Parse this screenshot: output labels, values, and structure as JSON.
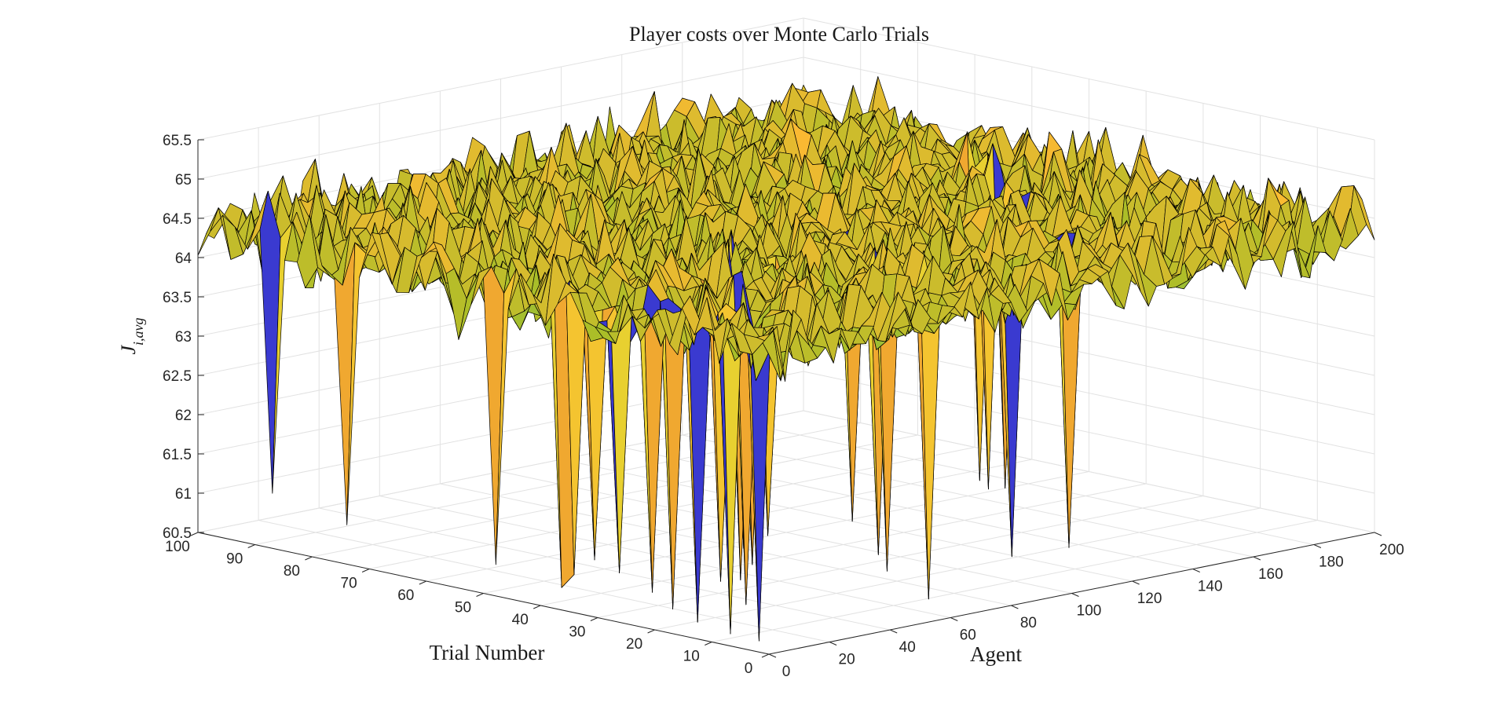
{
  "chart_data": {
    "type": "surface",
    "title": "Player costs over Monte Carlo Trials",
    "xlabel": "Agent",
    "ylabel": "Trial Number",
    "zlabel": "J_{i,avg}",
    "xlim": [
      0,
      200
    ],
    "ylim": [
      0,
      100
    ],
    "zlim": [
      60.5,
      65.5
    ],
    "x_ticks": [
      "0",
      "20",
      "40",
      "60",
      "80",
      "100",
      "120",
      "140",
      "160",
      "180",
      "200"
    ],
    "y_ticks": [
      "0",
      "10",
      "20",
      "30",
      "40",
      "50",
      "60",
      "70",
      "80",
      "90",
      "100"
    ],
    "z_ticks": [
      "60.5",
      "61",
      "61.5",
      "62",
      "62.5",
      "63",
      "63.5",
      "64",
      "64.5",
      "65",
      "65.5"
    ],
    "grid": true,
    "colormap": "parula",
    "edge_color": "#000000",
    "surface_typical_range": [
      63.6,
      65.1
    ],
    "spikes": [
      {
        "agent": 1,
        "trial": 88,
        "value": 61.2
      },
      {
        "agent": 1,
        "trial": 73,
        "value": 61.0
      },
      {
        "agent": 1,
        "trial": 47,
        "value": 60.9
      },
      {
        "agent": 4,
        "trial": 40,
        "value": 60.7
      },
      {
        "agent": 6,
        "trial": 38,
        "value": 60.9
      },
      {
        "agent": 7,
        "trial": 34,
        "value": 61.1
      },
      {
        "agent": 9,
        "trial": 30,
        "value": 61.0
      },
      {
        "agent": 10,
        "trial": 27,
        "value": 60.8
      },
      {
        "agent": 12,
        "trial": 23,
        "value": 60.6
      },
      {
        "agent": 14,
        "trial": 19,
        "value": 60.5
      },
      {
        "agent": 17,
        "trial": 16,
        "value": 60.4
      },
      {
        "agent": 20,
        "trial": 12,
        "value": 60.3
      },
      {
        "agent": 30,
        "trial": 20,
        "value": 60.6
      },
      {
        "agent": 36,
        "trial": 28,
        "value": 60.7
      },
      {
        "agent": 48,
        "trial": 30,
        "value": 60.6
      },
      {
        "agent": 56,
        "trial": 32,
        "value": 60.7
      },
      {
        "agent": 62,
        "trial": 36,
        "value": 60.8
      },
      {
        "agent": 70,
        "trial": 38,
        "value": 60.9
      },
      {
        "agent": 76,
        "trial": 14,
        "value": 60.4
      },
      {
        "agent": 80,
        "trial": 22,
        "value": 60.6
      },
      {
        "agent": 84,
        "trial": 26,
        "value": 60.7
      },
      {
        "agent": 100,
        "trial": 40,
        "value": 60.8
      },
      {
        "agent": 124,
        "trial": 24,
        "value": 60.4
      },
      {
        "agent": 136,
        "trial": 20,
        "value": 60.5
      },
      {
        "agent": 150,
        "trial": 38,
        "value": 60.7
      },
      {
        "agent": 160,
        "trial": 44,
        "value": 60.7
      },
      {
        "agent": 164,
        "trial": 48,
        "value": 60.6
      },
      {
        "agent": 168,
        "trial": 52,
        "value": 60.6
      }
    ]
  }
}
